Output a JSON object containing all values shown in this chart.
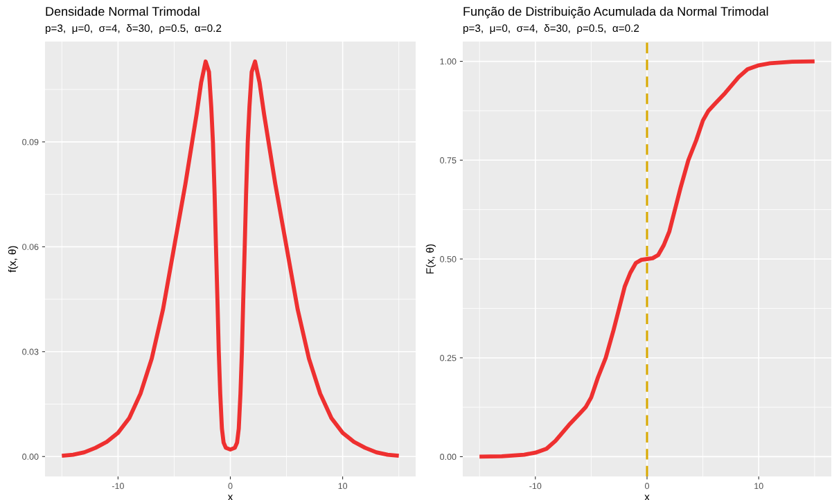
{
  "chart_data": [
    {
      "type": "line",
      "title": "Densidade Normal Trimodal",
      "subtitle": "p=3,  μ=0,  σ=4,  δ=30,  ρ=0.5,  α=0.2",
      "xlabel": "x",
      "ylabel": "f(x, θ)",
      "xlim": [
        -16.5,
        16.5
      ],
      "xticks": [
        -10,
        0,
        10
      ],
      "ylim": [
        -0.0057,
        0.1187
      ],
      "yticks": [
        {
          "value": 0,
          "label": "0.00"
        },
        {
          "value": 0.03,
          "label": "0.03"
        },
        {
          "value": 0.06,
          "label": "0.06"
        },
        {
          "value": 0.09,
          "label": "0.09"
        }
      ],
      "grid": true,
      "legend": false,
      "line_style": "solid",
      "marker": "none",
      "series": [
        {
          "color": "#ee3030",
          "x": [
            -15,
            -14,
            -13,
            -12,
            -11,
            -10,
            -9,
            -8,
            -7,
            -6,
            -5,
            -4,
            -3.5,
            -3,
            -2.6,
            -2.2,
            -1.9,
            -1.7,
            -1.55,
            -1.4,
            -1.28,
            -1.15,
            -1.03,
            -0.9,
            -0.75,
            -0.6,
            -0.4,
            0,
            0.4,
            0.6,
            0.75,
            0.9,
            1.03,
            1.15,
            1.28,
            1.4,
            1.55,
            1.7,
            1.9,
            2.2,
            2.6,
            3,
            3.5,
            4,
            5,
            6,
            7,
            8,
            9,
            10,
            11,
            12,
            13,
            14,
            15
          ],
          "values": [
            0.0002,
            0.0005,
            0.0012,
            0.0025,
            0.0042,
            0.0068,
            0.011,
            0.018,
            0.028,
            0.042,
            0.06,
            0.078,
            0.088,
            0.098,
            0.107,
            0.113,
            0.11,
            0.1,
            0.09,
            0.075,
            0.06,
            0.045,
            0.03,
            0.018,
            0.008,
            0.004,
            0.0025,
            0.002,
            0.0025,
            0.004,
            0.008,
            0.018,
            0.03,
            0.045,
            0.06,
            0.075,
            0.09,
            0.1,
            0.11,
            0.113,
            0.107,
            0.098,
            0.088,
            0.078,
            0.06,
            0.042,
            0.028,
            0.018,
            0.011,
            0.0068,
            0.0042,
            0.0025,
            0.0012,
            0.0005,
            0.0002
          ]
        }
      ]
    },
    {
      "type": "line",
      "title": "Função de Distribuição Acumulada da Normal Trimodal",
      "subtitle": "p=3,  μ=0,  σ=4,  δ=30,  ρ=0.5,  α=0.2",
      "xlabel": "x",
      "ylabel": "F(x, θ)",
      "xlim": [
        -16.5,
        16.5
      ],
      "xticks": [
        -10,
        0,
        10
      ],
      "ylim": [
        -0.05,
        1.05
      ],
      "yticks": [
        {
          "value": 0,
          "label": "0.00"
        },
        {
          "value": 0.25,
          "label": "0.25"
        },
        {
          "value": 0.5,
          "label": "0.50"
        },
        {
          "value": 0.75,
          "label": "0.75"
        },
        {
          "value": 1,
          "label": "1.00"
        }
      ],
      "grid": true,
      "legend": false,
      "line_style": "solid",
      "marker": "none",
      "ref_lines": [
        {
          "axis": "x",
          "value": 0,
          "color": "#d9aa00",
          "line_style": "dashed"
        }
      ],
      "series": [
        {
          "color": "#ee3030",
          "x": [
            -15,
            -13,
            -11,
            -10,
            -9,
            -8.2,
            -7,
            -6,
            -5.5,
            -5,
            -4.4,
            -3.7,
            -3,
            -2.5,
            -2,
            -1.5,
            -1,
            -0.5,
            0,
            0.5,
            1,
            1.5,
            2,
            2.5,
            3,
            3.7,
            4.4,
            5,
            5.5,
            6,
            7,
            8.2,
            9,
            10,
            11,
            13,
            15
          ],
          "values": [
            0,
            0.001,
            0.005,
            0.01,
            0.02,
            0.04,
            0.08,
            0.11,
            0.125,
            0.15,
            0.2,
            0.25,
            0.32,
            0.375,
            0.43,
            0.465,
            0.49,
            0.498,
            0.5,
            0.502,
            0.51,
            0.535,
            0.57,
            0.625,
            0.68,
            0.75,
            0.8,
            0.85,
            0.875,
            0.89,
            0.92,
            0.96,
            0.98,
            0.99,
            0.995,
            0.999,
            1
          ]
        }
      ]
    }
  ]
}
